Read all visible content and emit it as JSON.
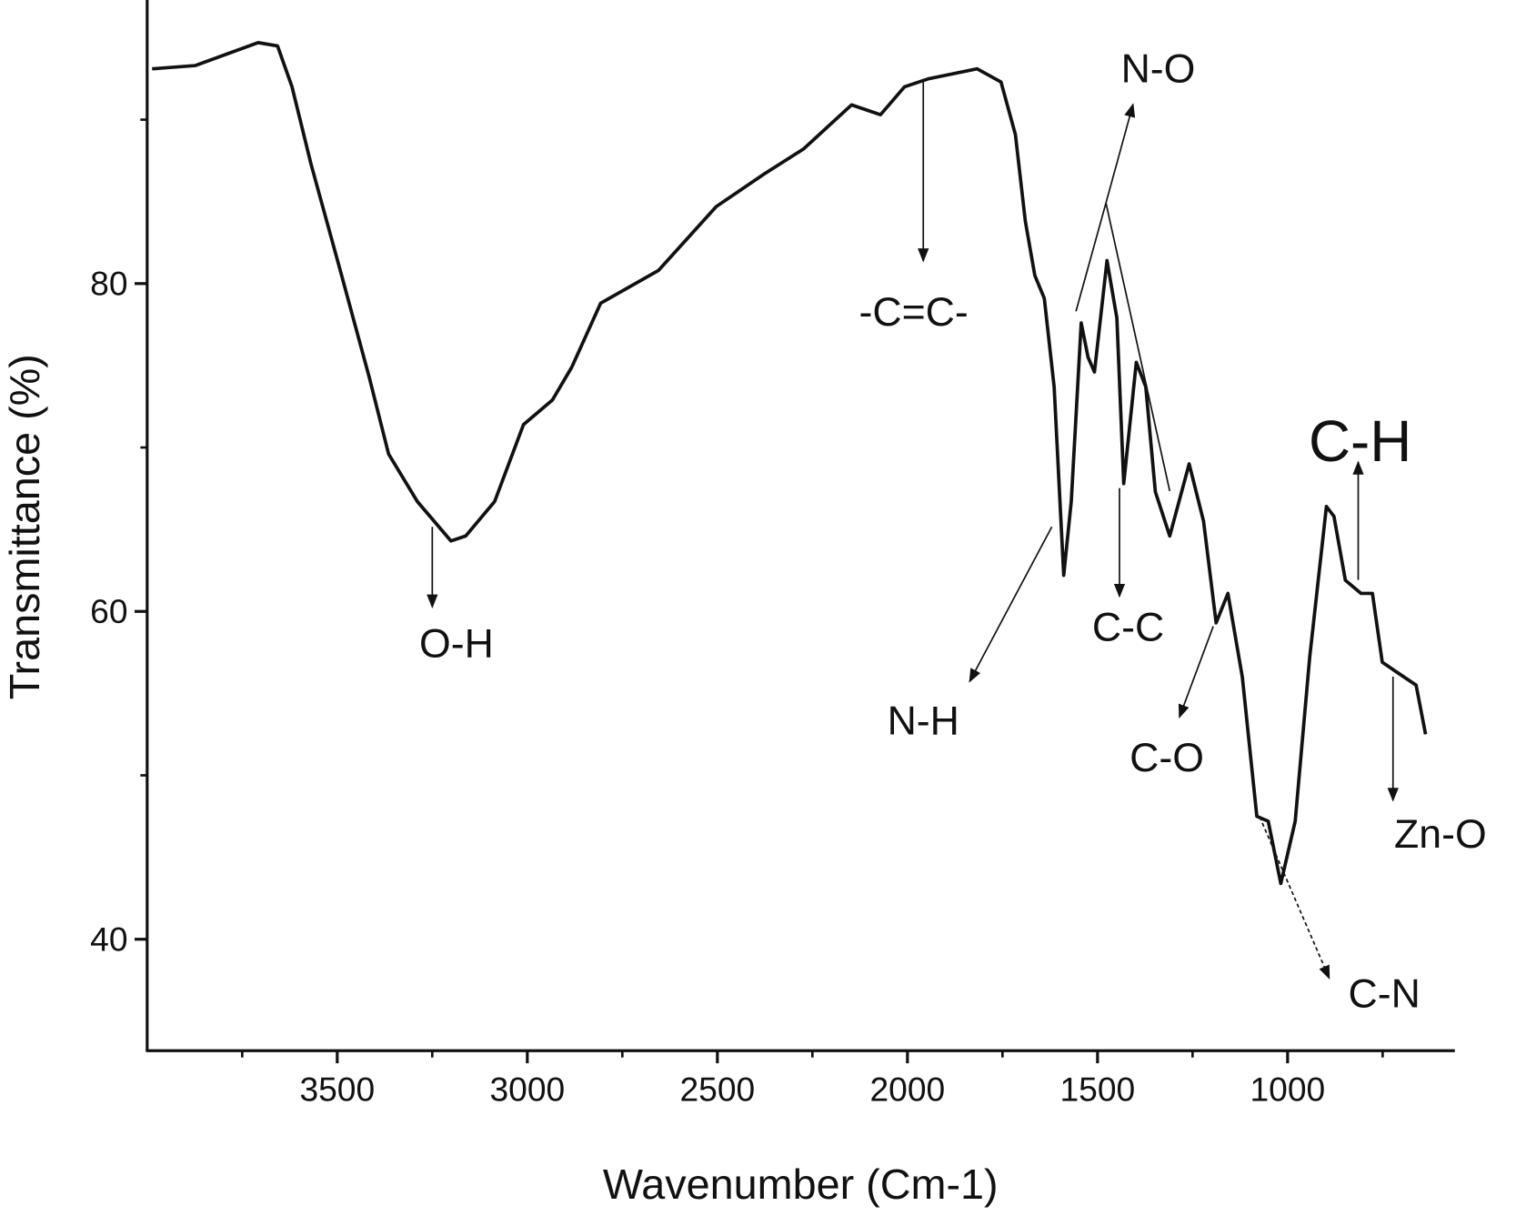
{
  "chart_data": {
    "type": "line",
    "xlabel": "Wavenumber (Cm-1)",
    "ylabel": "Transmittance (%)",
    "xlim": [
      4000,
      560
    ],
    "xreversed": true,
    "ylim": [
      33.2,
      97.3
    ],
    "xticks": [
      3500,
      3000,
      2500,
      2000,
      1500,
      1000
    ],
    "xticks_minor": [
      3750,
      3250,
      2750,
      2250,
      1750,
      1250,
      750
    ],
    "yticks": [
      40,
      60,
      80
    ],
    "yticks_minor": [
      50,
      70,
      90
    ],
    "color": "#111111",
    "x": [
      3987,
      3873,
      3708,
      3657,
      3619,
      3569,
      3492,
      3416,
      3365,
      3289,
      3201,
      3162,
      3086,
      3010,
      2934,
      2883,
      2807,
      2655,
      2503,
      2376,
      2274,
      2147,
      2071,
      2008,
      1944,
      1817,
      1754,
      1716,
      1690,
      1665,
      1640,
      1614,
      1589,
      1569,
      1543,
      1525,
      1508,
      1475,
      1449,
      1431,
      1398,
      1373,
      1348,
      1310,
      1259,
      1221,
      1188,
      1157,
      1119,
      1081,
      1051,
      1018,
      980,
      942,
      898,
      878,
      848,
      807,
      777,
      751,
      713,
      662,
      637
    ],
    "values": [
      93.1,
      93.3,
      94.7,
      94.5,
      92.0,
      87.3,
      80.8,
      74.3,
      69.6,
      66.7,
      64.3,
      64.6,
      66.7,
      71.4,
      72.9,
      74.9,
      78.8,
      80.8,
      84.7,
      86.7,
      88.2,
      90.9,
      90.3,
      92.0,
      92.5,
      93.1,
      92.3,
      89.1,
      83.8,
      80.5,
      79.1,
      73.7,
      62.2,
      66.7,
      77.6,
      75.5,
      74.6,
      81.4,
      77.9,
      67.8,
      75.2,
      73.7,
      67.3,
      64.6,
      69.0,
      65.5,
      59.3,
      61.1,
      56.0,
      47.5,
      47.2,
      43.4,
      47.2,
      57.2,
      66.4,
      65.8,
      61.9,
      61.1,
      61.1,
      56.9,
      56.3,
      55.5,
      52.5
    ],
    "annotations": [
      "O-H",
      "-C=C-",
      "N-O",
      "N-H",
      "C-C",
      "C-O",
      "C-H",
      "Zn-O",
      "C-N"
    ]
  }
}
